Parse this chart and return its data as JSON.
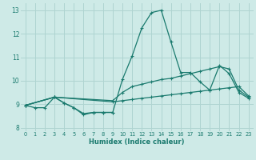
{
  "bg_color": "#ceeae7",
  "grid_color": "#afd4d1",
  "line_color": "#1a7a6e",
  "xlabel": "Humidex (Indice chaleur)",
  "xlim": [
    -0.5,
    23.5
  ],
  "ylim": [
    7.85,
    13.3
  ],
  "yticks": [
    8,
    9,
    10,
    11,
    12,
    13
  ],
  "xticks": [
    0,
    1,
    2,
    3,
    4,
    5,
    6,
    7,
    8,
    9,
    10,
    11,
    12,
    13,
    14,
    15,
    16,
    17,
    18,
    19,
    20,
    21,
    22,
    23
  ],
  "series": [
    {
      "x": [
        0,
        1,
        2,
        3,
        4,
        5,
        6,
        7,
        8,
        9,
        10,
        11,
        12,
        13,
        14,
        15,
        16,
        17,
        18,
        19,
        20,
        21,
        22,
        23
      ],
      "y": [
        8.95,
        8.85,
        8.85,
        9.3,
        9.05,
        8.85,
        8.6,
        8.65,
        8.65,
        8.65,
        10.05,
        11.05,
        12.25,
        12.9,
        13.0,
        11.65,
        10.35,
        10.35,
        9.95,
        9.6,
        10.65,
        10.3,
        9.5,
        9.25
      ]
    },
    {
      "x": [
        0,
        3,
        9,
        10,
        11,
        12,
        13,
        14,
        15,
        16,
        17,
        18,
        19,
        20,
        21,
        22,
        23
      ],
      "y": [
        8.95,
        9.3,
        9.1,
        9.15,
        9.2,
        9.25,
        9.3,
        9.35,
        9.4,
        9.45,
        9.5,
        9.55,
        9.6,
        9.65,
        9.7,
        9.75,
        9.35
      ]
    },
    {
      "x": [
        0,
        3,
        9,
        10,
        11,
        12,
        13,
        14,
        15,
        16,
        17,
        18,
        19,
        20,
        21,
        22,
        23
      ],
      "y": [
        8.95,
        9.3,
        9.15,
        9.5,
        9.75,
        9.85,
        9.95,
        10.05,
        10.1,
        10.2,
        10.3,
        10.4,
        10.5,
        10.6,
        10.5,
        9.6,
        9.3
      ]
    },
    {
      "x": [
        0,
        3,
        4,
        5,
        6,
        7,
        8,
        9
      ],
      "y": [
        8.95,
        9.3,
        9.05,
        8.85,
        8.55,
        8.65,
        8.65,
        8.65
      ]
    }
  ]
}
